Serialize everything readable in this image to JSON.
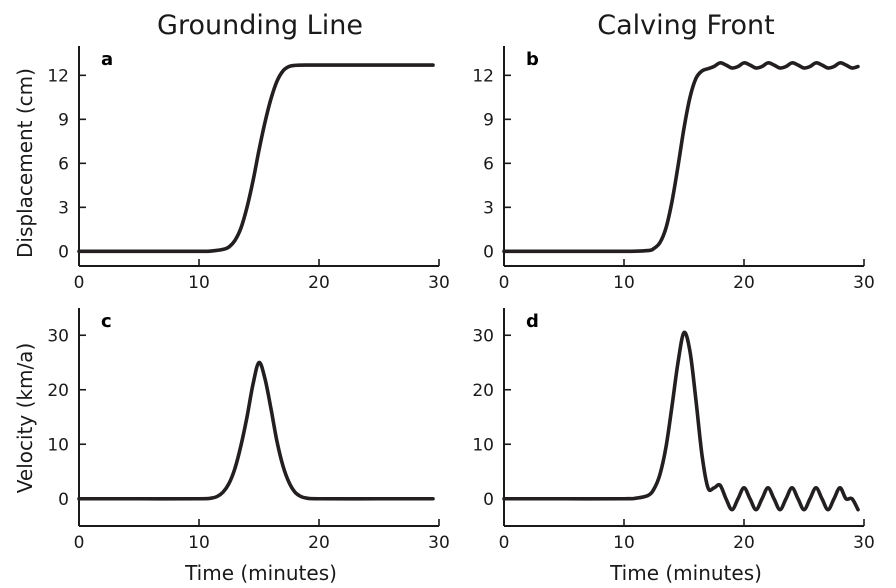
{
  "column_titles": [
    "Grounding Line",
    "Calving Front"
  ],
  "ylabel_top": "Displacement (cm)",
  "ylabel_bottom": "Velocity (km/a)",
  "xlabel": "Time (minutes)",
  "chart_data": [
    {
      "type": "line",
      "panel": "a",
      "xlim": [
        0,
        30
      ],
      "ylim": [
        -1,
        14
      ],
      "xticks": [
        0,
        10,
        20,
        30
      ],
      "yticks": [
        0,
        3,
        6,
        9,
        12
      ],
      "series": [
        {
          "x": [
            0,
            5,
            10,
            11,
            12,
            12.5,
            13,
            13.5,
            14,
            14.5,
            15,
            15.5,
            16,
            16.5,
            17,
            17.5,
            18,
            19,
            20,
            25,
            29.5
          ],
          "y": [
            0,
            0,
            0,
            0.02,
            0.13,
            0.3,
            0.75,
            1.6,
            3.0,
            4.8,
            6.9,
            8.8,
            10.4,
            11.6,
            12.3,
            12.6,
            12.68,
            12.7,
            12.7,
            12.7,
            12.7
          ]
        }
      ]
    },
    {
      "type": "line",
      "panel": "b",
      "xlim": [
        0,
        30
      ],
      "ylim": [
        -1,
        14
      ],
      "xticks": [
        0,
        10,
        20,
        30
      ],
      "yticks": [
        0,
        3,
        6,
        9,
        12
      ],
      "series": [
        {
          "x": [
            0,
            5,
            10,
            12,
            12.5,
            13,
            13.5,
            14,
            14.5,
            15,
            15.5,
            16,
            16.5,
            17,
            17.5,
            18,
            18.5,
            19,
            19.5,
            20,
            20.5,
            21,
            21.5,
            22,
            22.5,
            23,
            23.5,
            24,
            24.5,
            25,
            25.5,
            26,
            26.5,
            27,
            27.5,
            28,
            28.5,
            29,
            29.5
          ],
          "y": [
            0,
            0,
            0,
            0.05,
            0.2,
            0.6,
            1.6,
            3.4,
            5.8,
            8.4,
            10.5,
            11.8,
            12.3,
            12.45,
            12.6,
            12.85,
            12.7,
            12.5,
            12.6,
            12.85,
            12.7,
            12.5,
            12.6,
            12.85,
            12.7,
            12.5,
            12.6,
            12.85,
            12.7,
            12.5,
            12.6,
            12.85,
            12.7,
            12.5,
            12.6,
            12.85,
            12.7,
            12.5,
            12.6
          ]
        }
      ]
    },
    {
      "type": "line",
      "panel": "c",
      "xlim": [
        0,
        30
      ],
      "ylim": [
        -5,
        35
      ],
      "xticks": [
        0,
        10,
        20,
        30
      ],
      "yticks": [
        0,
        10,
        20,
        30
      ],
      "series": [
        {
          "x": [
            0,
            5,
            10,
            11,
            11.5,
            12,
            12.5,
            13,
            13.5,
            14,
            14.5,
            15,
            15.5,
            16,
            16.5,
            17,
            17.5,
            18,
            18.5,
            19,
            20,
            25,
            29.5
          ],
          "y": [
            0,
            0,
            0,
            0.1,
            0.4,
            1.2,
            2.8,
            5.6,
            9.8,
            15,
            21,
            25,
            22,
            16.5,
            10.5,
            6,
            3,
            1.2,
            0.4,
            0.1,
            0,
            0,
            0
          ]
        }
      ]
    },
    {
      "type": "line",
      "panel": "d",
      "xlim": [
        0,
        30
      ],
      "ylim": [
        -5,
        35
      ],
      "xticks": [
        0,
        10,
        20,
        30
      ],
      "yticks": [
        0,
        10,
        20,
        30
      ],
      "series": [
        {
          "x": [
            0,
            5,
            10,
            11,
            12,
            12.5,
            13,
            13.5,
            14,
            14.5,
            15,
            15.5,
            16,
            16.5,
            17,
            17.5,
            18,
            18.5,
            19,
            19.5,
            20,
            20.5,
            21,
            21.5,
            22,
            22.5,
            23,
            23.5,
            24,
            24.5,
            25,
            25.5,
            26,
            26.5,
            27,
            27.5,
            28,
            28.5,
            29,
            29.5
          ],
          "y": [
            0,
            0,
            0,
            0.1,
            0.6,
            1.8,
            4.5,
            9.5,
            17,
            25,
            30.5,
            27,
            18,
            8,
            2,
            2,
            2.5,
            0,
            -2,
            0,
            2,
            0,
            -2,
            0,
            2,
            0,
            -2,
            0,
            2,
            0,
            -2,
            0,
            2,
            0,
            -2,
            0,
            2,
            0,
            0,
            -2
          ]
        }
      ]
    }
  ]
}
